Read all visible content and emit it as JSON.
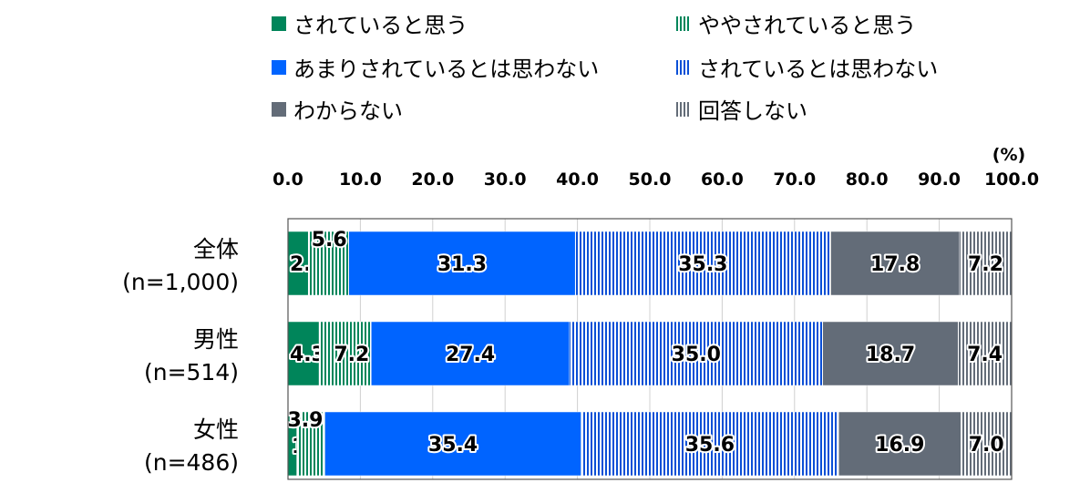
{
  "chart_data": {
    "type": "bar",
    "orientation": "horizontal",
    "stacked": true,
    "unit_label": "(%)",
    "xlim": [
      0,
      100
    ],
    "x_ticks": [
      "0.0",
      "10.0",
      "20.0",
      "30.0",
      "40.0",
      "50.0",
      "60.0",
      "70.0",
      "80.0",
      "90.0",
      "100.0"
    ],
    "categories": [
      [
        "全体",
        "(n=1,000)"
      ],
      [
        "男性",
        "(n=514)"
      ],
      [
        "女性",
        "(n=486)"
      ]
    ],
    "legend_placement": "top",
    "series": [
      {
        "name": "されていると思う",
        "values": [
          2.8,
          4.3,
          1.2
        ],
        "color": "#00855a",
        "pattern": "solid",
        "label_style": "outside-dark"
      },
      {
        "name": "ややされていると思う",
        "values": [
          5.6,
          7.2,
          3.9
        ],
        "color": "#00855a",
        "pattern": "vstripe",
        "label_style": "outside-dark"
      },
      {
        "name": "あまりされているとは思わない",
        "values": [
          31.3,
          27.4,
          35.4
        ],
        "color": "#0064ff",
        "pattern": "solid",
        "label_style": "center"
      },
      {
        "name": "されているとは思わない",
        "values": [
          35.3,
          35.0,
          35.6
        ],
        "color": "#0a4fd6",
        "pattern": "vstripe",
        "label_style": "center"
      },
      {
        "name": "わからない",
        "values": [
          17.8,
          18.7,
          16.9
        ],
        "color": "#636c78",
        "pattern": "solid",
        "label_style": "center"
      },
      {
        "name": "回答しない",
        "values": [
          7.2,
          7.4,
          7.0
        ],
        "color": "#636c78",
        "pattern": "vstripe",
        "label_style": "center"
      }
    ]
  }
}
